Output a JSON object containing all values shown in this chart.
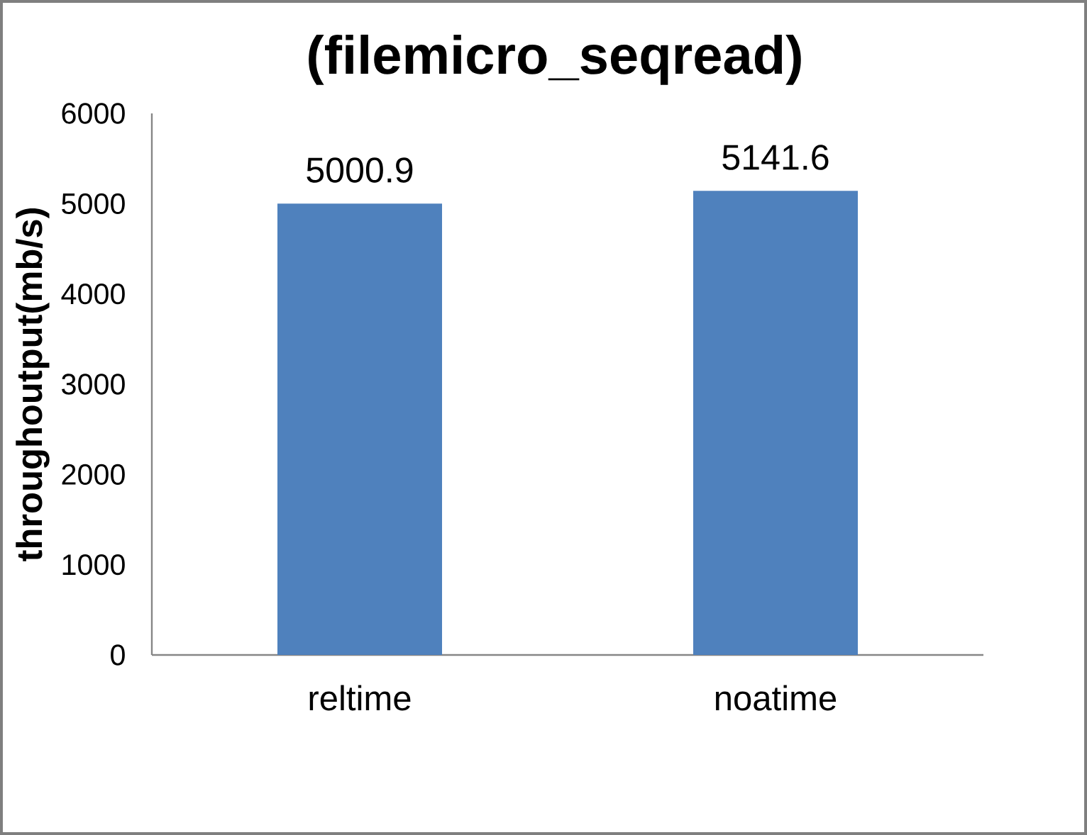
{
  "chart_data": {
    "type": "bar",
    "title": "(filemicro_seqread)",
    "ylabel": "throughoutput(mb/s)",
    "categories": [
      "reltime",
      "noatime"
    ],
    "values": [
      5000.9,
      5141.6
    ],
    "color": "#4f81bd",
    "ylim": [
      0,
      6000
    ],
    "yticks": [
      0,
      1000,
      2000,
      3000,
      4000,
      5000,
      6000
    ],
    "data_labels": true
  }
}
